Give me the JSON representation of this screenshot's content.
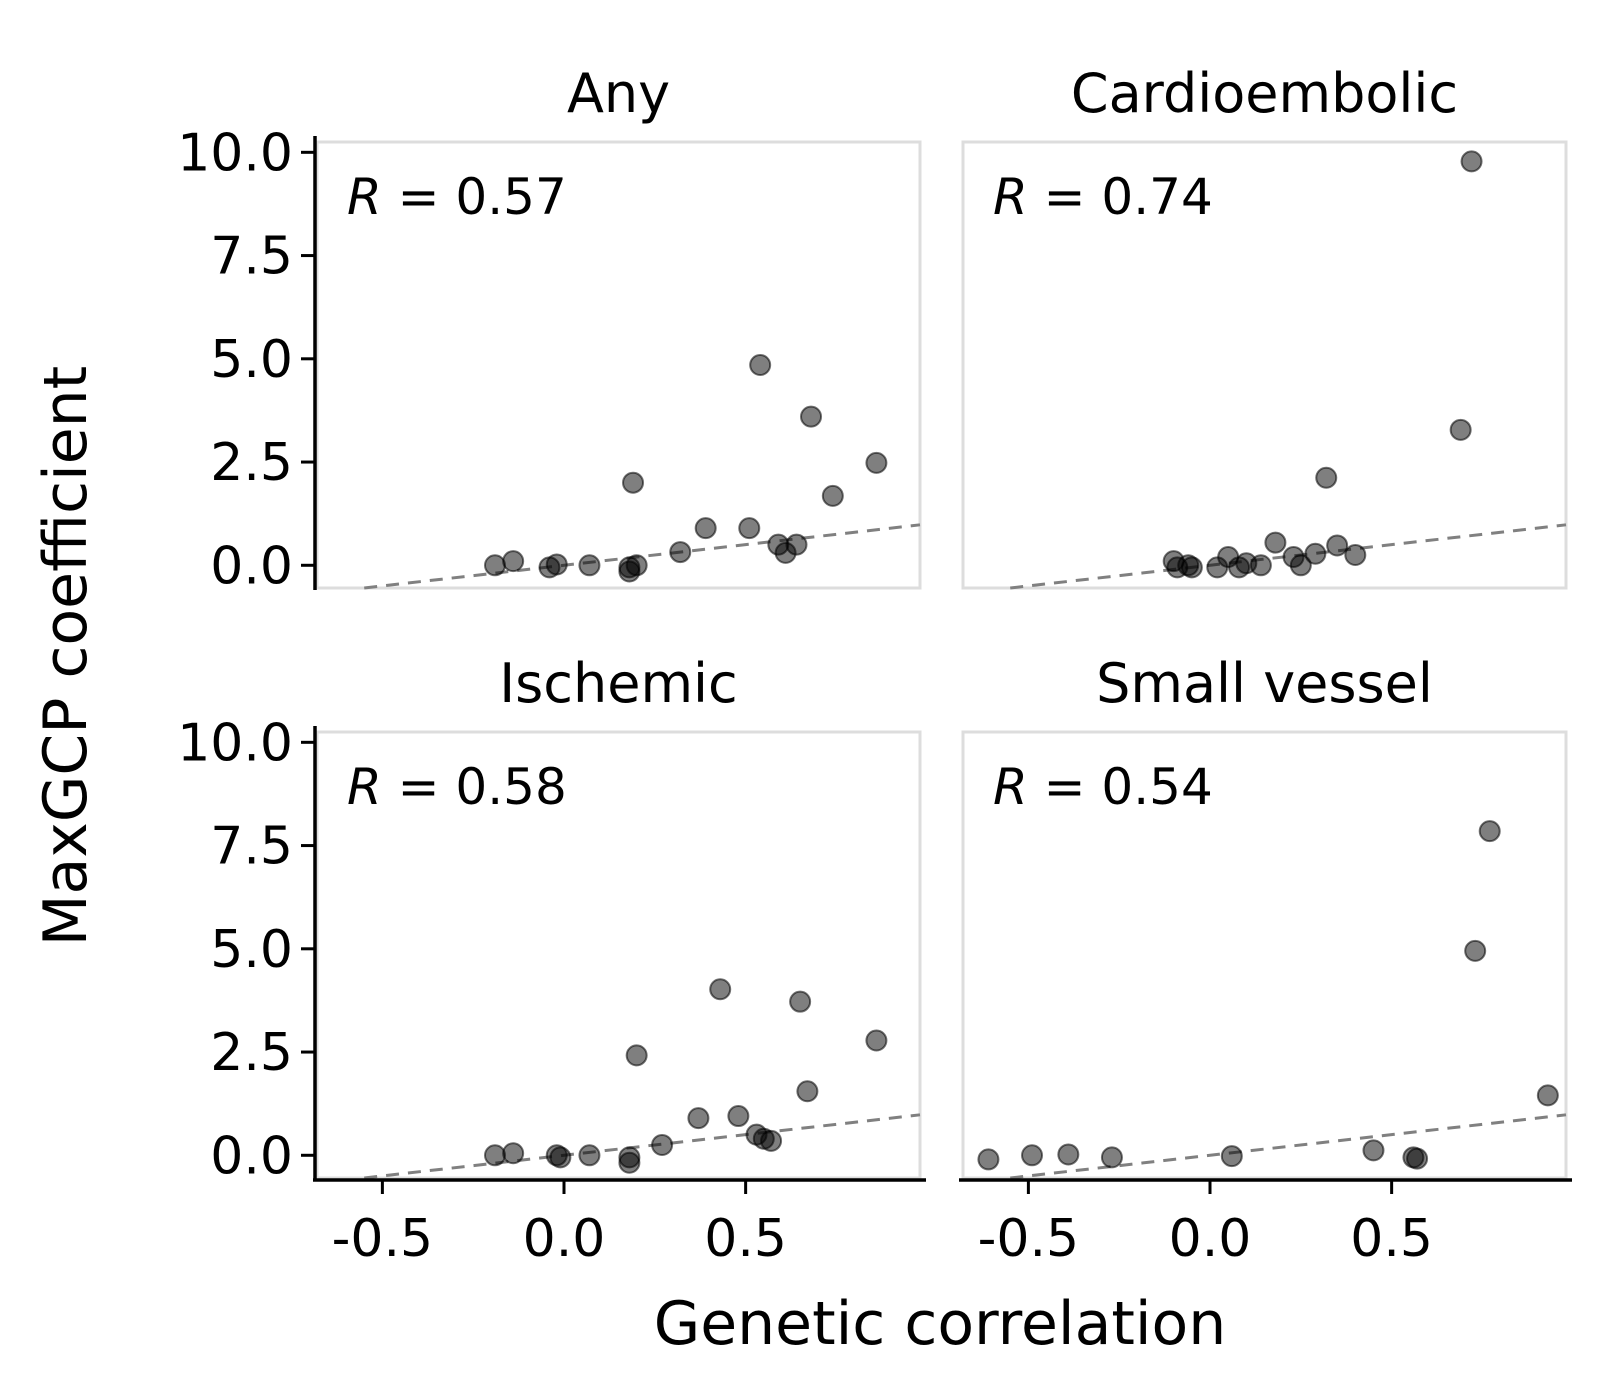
{
  "chart_data": {
    "type": "scatter",
    "xlabel": "Genetic correlation",
    "ylabel": "MaxGCP coefficient",
    "xlim": [
      -0.68,
      0.98
    ],
    "ylim": [
      -0.55,
      10.25
    ],
    "x_ticks": [
      "-0.5",
      "0.0",
      "0.5"
    ],
    "x_tick_values": [
      -0.5,
      0.0,
      0.5
    ],
    "y_ticks": [
      "0.0",
      "2.5",
      "5.0",
      "7.5",
      "10.0"
    ],
    "y_tick_values": [
      0.0,
      2.5,
      5.0,
      7.5,
      10.0
    ],
    "trend_line": "y = x",
    "colors": {
      "point": "#000000",
      "trend": "#808080",
      "frame": "#dddddd"
    },
    "panels": [
      {
        "title": "Any",
        "r_symbol": "R",
        "r_text": " = 0.57",
        "points": [
          [
            -0.19,
            0.0
          ],
          [
            -0.14,
            0.1
          ],
          [
            -0.04,
            -0.05
          ],
          [
            -0.02,
            0.02
          ],
          [
            0.07,
            0.0
          ],
          [
            0.19,
            2.0
          ],
          [
            0.18,
            -0.15
          ],
          [
            0.18,
            -0.05
          ],
          [
            0.2,
            0.0
          ],
          [
            0.32,
            0.32
          ],
          [
            0.39,
            0.9
          ],
          [
            0.51,
            0.9
          ],
          [
            0.54,
            4.85
          ],
          [
            0.59,
            0.5
          ],
          [
            0.61,
            0.3
          ],
          [
            0.64,
            0.5
          ],
          [
            0.68,
            3.6
          ],
          [
            0.74,
            1.68
          ],
          [
            0.86,
            2.48
          ]
        ]
      },
      {
        "title": "Cardioembolic",
        "r_symbol": "R",
        "r_text": " = 0.74",
        "points": [
          [
            -0.1,
            0.1
          ],
          [
            -0.09,
            -0.05
          ],
          [
            -0.06,
            0.0
          ],
          [
            -0.05,
            -0.05
          ],
          [
            0.02,
            -0.05
          ],
          [
            0.05,
            0.2
          ],
          [
            0.08,
            -0.05
          ],
          [
            0.1,
            0.05
          ],
          [
            0.14,
            0.0
          ],
          [
            0.18,
            0.55
          ],
          [
            0.23,
            0.2
          ],
          [
            0.25,
            0.0
          ],
          [
            0.29,
            0.28
          ],
          [
            0.32,
            2.12
          ],
          [
            0.35,
            0.48
          ],
          [
            0.4,
            0.25
          ],
          [
            0.69,
            3.28
          ],
          [
            0.72,
            9.78
          ]
        ]
      },
      {
        "title": "Ischemic",
        "r_symbol": "R",
        "r_text": " = 0.58",
        "points": [
          [
            -0.19,
            0.0
          ],
          [
            -0.14,
            0.05
          ],
          [
            -0.02,
            0.0
          ],
          [
            -0.01,
            -0.05
          ],
          [
            0.07,
            0.0
          ],
          [
            0.18,
            -0.18
          ],
          [
            0.18,
            -0.05
          ],
          [
            0.2,
            2.42
          ],
          [
            0.27,
            0.25
          ],
          [
            0.37,
            0.9
          ],
          [
            0.43,
            4.02
          ],
          [
            0.48,
            0.95
          ],
          [
            0.53,
            0.5
          ],
          [
            0.55,
            0.4
          ],
          [
            0.57,
            0.35
          ],
          [
            0.65,
            3.72
          ],
          [
            0.67,
            1.55
          ],
          [
            0.86,
            2.78
          ]
        ]
      },
      {
        "title": "Small vessel",
        "r_symbol": "R",
        "r_text": " = 0.54",
        "points": [
          [
            -0.61,
            -0.1
          ],
          [
            -0.49,
            0.0
          ],
          [
            -0.39,
            0.02
          ],
          [
            -0.27,
            -0.05
          ],
          [
            0.06,
            -0.02
          ],
          [
            0.45,
            0.12
          ],
          [
            0.56,
            -0.05
          ],
          [
            0.57,
            -0.08
          ],
          [
            0.73,
            4.95
          ],
          [
            0.77,
            7.85
          ],
          [
            0.93,
            1.45
          ]
        ]
      }
    ]
  }
}
